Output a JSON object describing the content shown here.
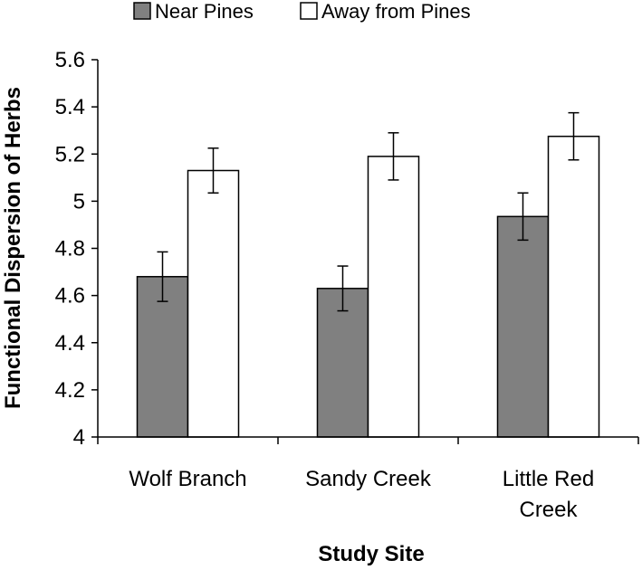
{
  "chart_data": {
    "type": "bar",
    "title": "",
    "xlabel": "Study Site",
    "ylabel": "Functional Dispersion of Herbs",
    "ylim": [
      4,
      5.6
    ],
    "yticks": [
      4,
      4.2,
      4.4,
      4.6,
      4.8,
      5,
      5.2,
      5.4,
      5.6
    ],
    "ytick_labels": [
      "4",
      "4.2",
      "4.4",
      "4.6",
      "4.8",
      "5",
      "5.2",
      "5.4",
      "5.6"
    ],
    "categories": [
      [
        "Wolf Branch"
      ],
      [
        "Sandy Creek"
      ],
      [
        "Little Red",
        "Creek"
      ]
    ],
    "series": [
      {
        "name": "Near Pines",
        "color": "#808080",
        "values": [
          4.68,
          4.63,
          4.935
        ],
        "errors": [
          0.105,
          0.095,
          0.1
        ]
      },
      {
        "name": "Away from Pines",
        "color": "#ffffff",
        "values": [
          5.13,
          5.19,
          5.275
        ],
        "errors": [
          0.095,
          0.1,
          0.1
        ]
      }
    ],
    "grid": false,
    "legend_position": "top"
  }
}
